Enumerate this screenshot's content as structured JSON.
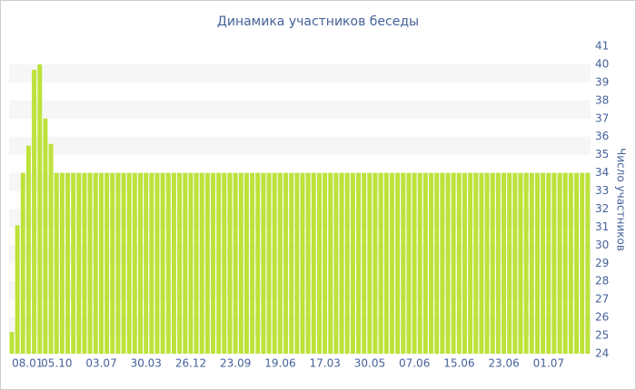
{
  "chart_data": {
    "type": "bar",
    "title": "Динамика участников беседы",
    "y_axis_label": "Число участников",
    "categories": [
      "08.01",
      null,
      null,
      null,
      null,
      null,
      null,
      null,
      "05.10",
      null,
      null,
      null,
      null,
      null,
      null,
      null,
      "03.07",
      null,
      null,
      null,
      null,
      null,
      null,
      null,
      "30.03",
      null,
      null,
      null,
      null,
      null,
      null,
      null,
      "26.12",
      null,
      null,
      null,
      null,
      null,
      null,
      null,
      "23.09",
      null,
      null,
      null,
      null,
      null,
      null,
      null,
      "19.06",
      null,
      null,
      null,
      null,
      null,
      null,
      null,
      "17.03",
      null,
      null,
      null,
      null,
      null,
      null,
      null,
      "30.05",
      null,
      null,
      null,
      null,
      null,
      null,
      null,
      "07.06",
      null,
      null,
      null,
      null,
      null,
      null,
      null,
      "15.06",
      null,
      null,
      null,
      null,
      null,
      null,
      null,
      "23.06",
      null,
      null,
      null,
      null,
      null,
      null,
      null,
      "01.07",
      null,
      null,
      null,
      null,
      null,
      null,
      null
    ],
    "values": [
      25.2,
      31.1,
      34,
      35.5,
      39.7,
      40,
      37,
      35.6,
      34,
      34,
      34,
      34,
      34,
      34,
      34,
      34,
      34,
      34,
      34,
      34,
      34,
      34,
      34,
      34,
      34,
      34,
      34,
      34,
      34,
      34,
      34,
      34,
      34,
      34,
      34,
      34,
      34,
      34,
      34,
      34,
      34,
      34,
      34,
      34,
      34,
      34,
      34,
      34,
      34,
      34,
      34,
      34,
      34,
      34,
      34,
      34,
      34,
      34,
      34,
      34,
      34,
      34,
      34,
      34,
      34,
      34,
      34,
      34,
      34,
      34,
      34,
      34,
      34,
      34,
      34,
      34,
      34,
      34,
      34,
      34,
      34,
      34,
      34,
      34,
      34,
      34,
      34,
      34,
      34,
      34,
      34,
      34,
      34,
      34,
      34,
      34,
      34,
      34,
      34,
      34,
      34,
      34,
      34,
      34
    ],
    "color": "#bde23a",
    "ylim": [
      24,
      41
    ],
    "yticks": [
      24,
      25,
      26,
      27,
      28,
      29,
      30,
      31,
      32,
      33,
      34,
      35,
      36,
      37,
      38,
      39,
      40,
      41
    ],
    "grid": "bands",
    "y_axis_side": "right"
  }
}
